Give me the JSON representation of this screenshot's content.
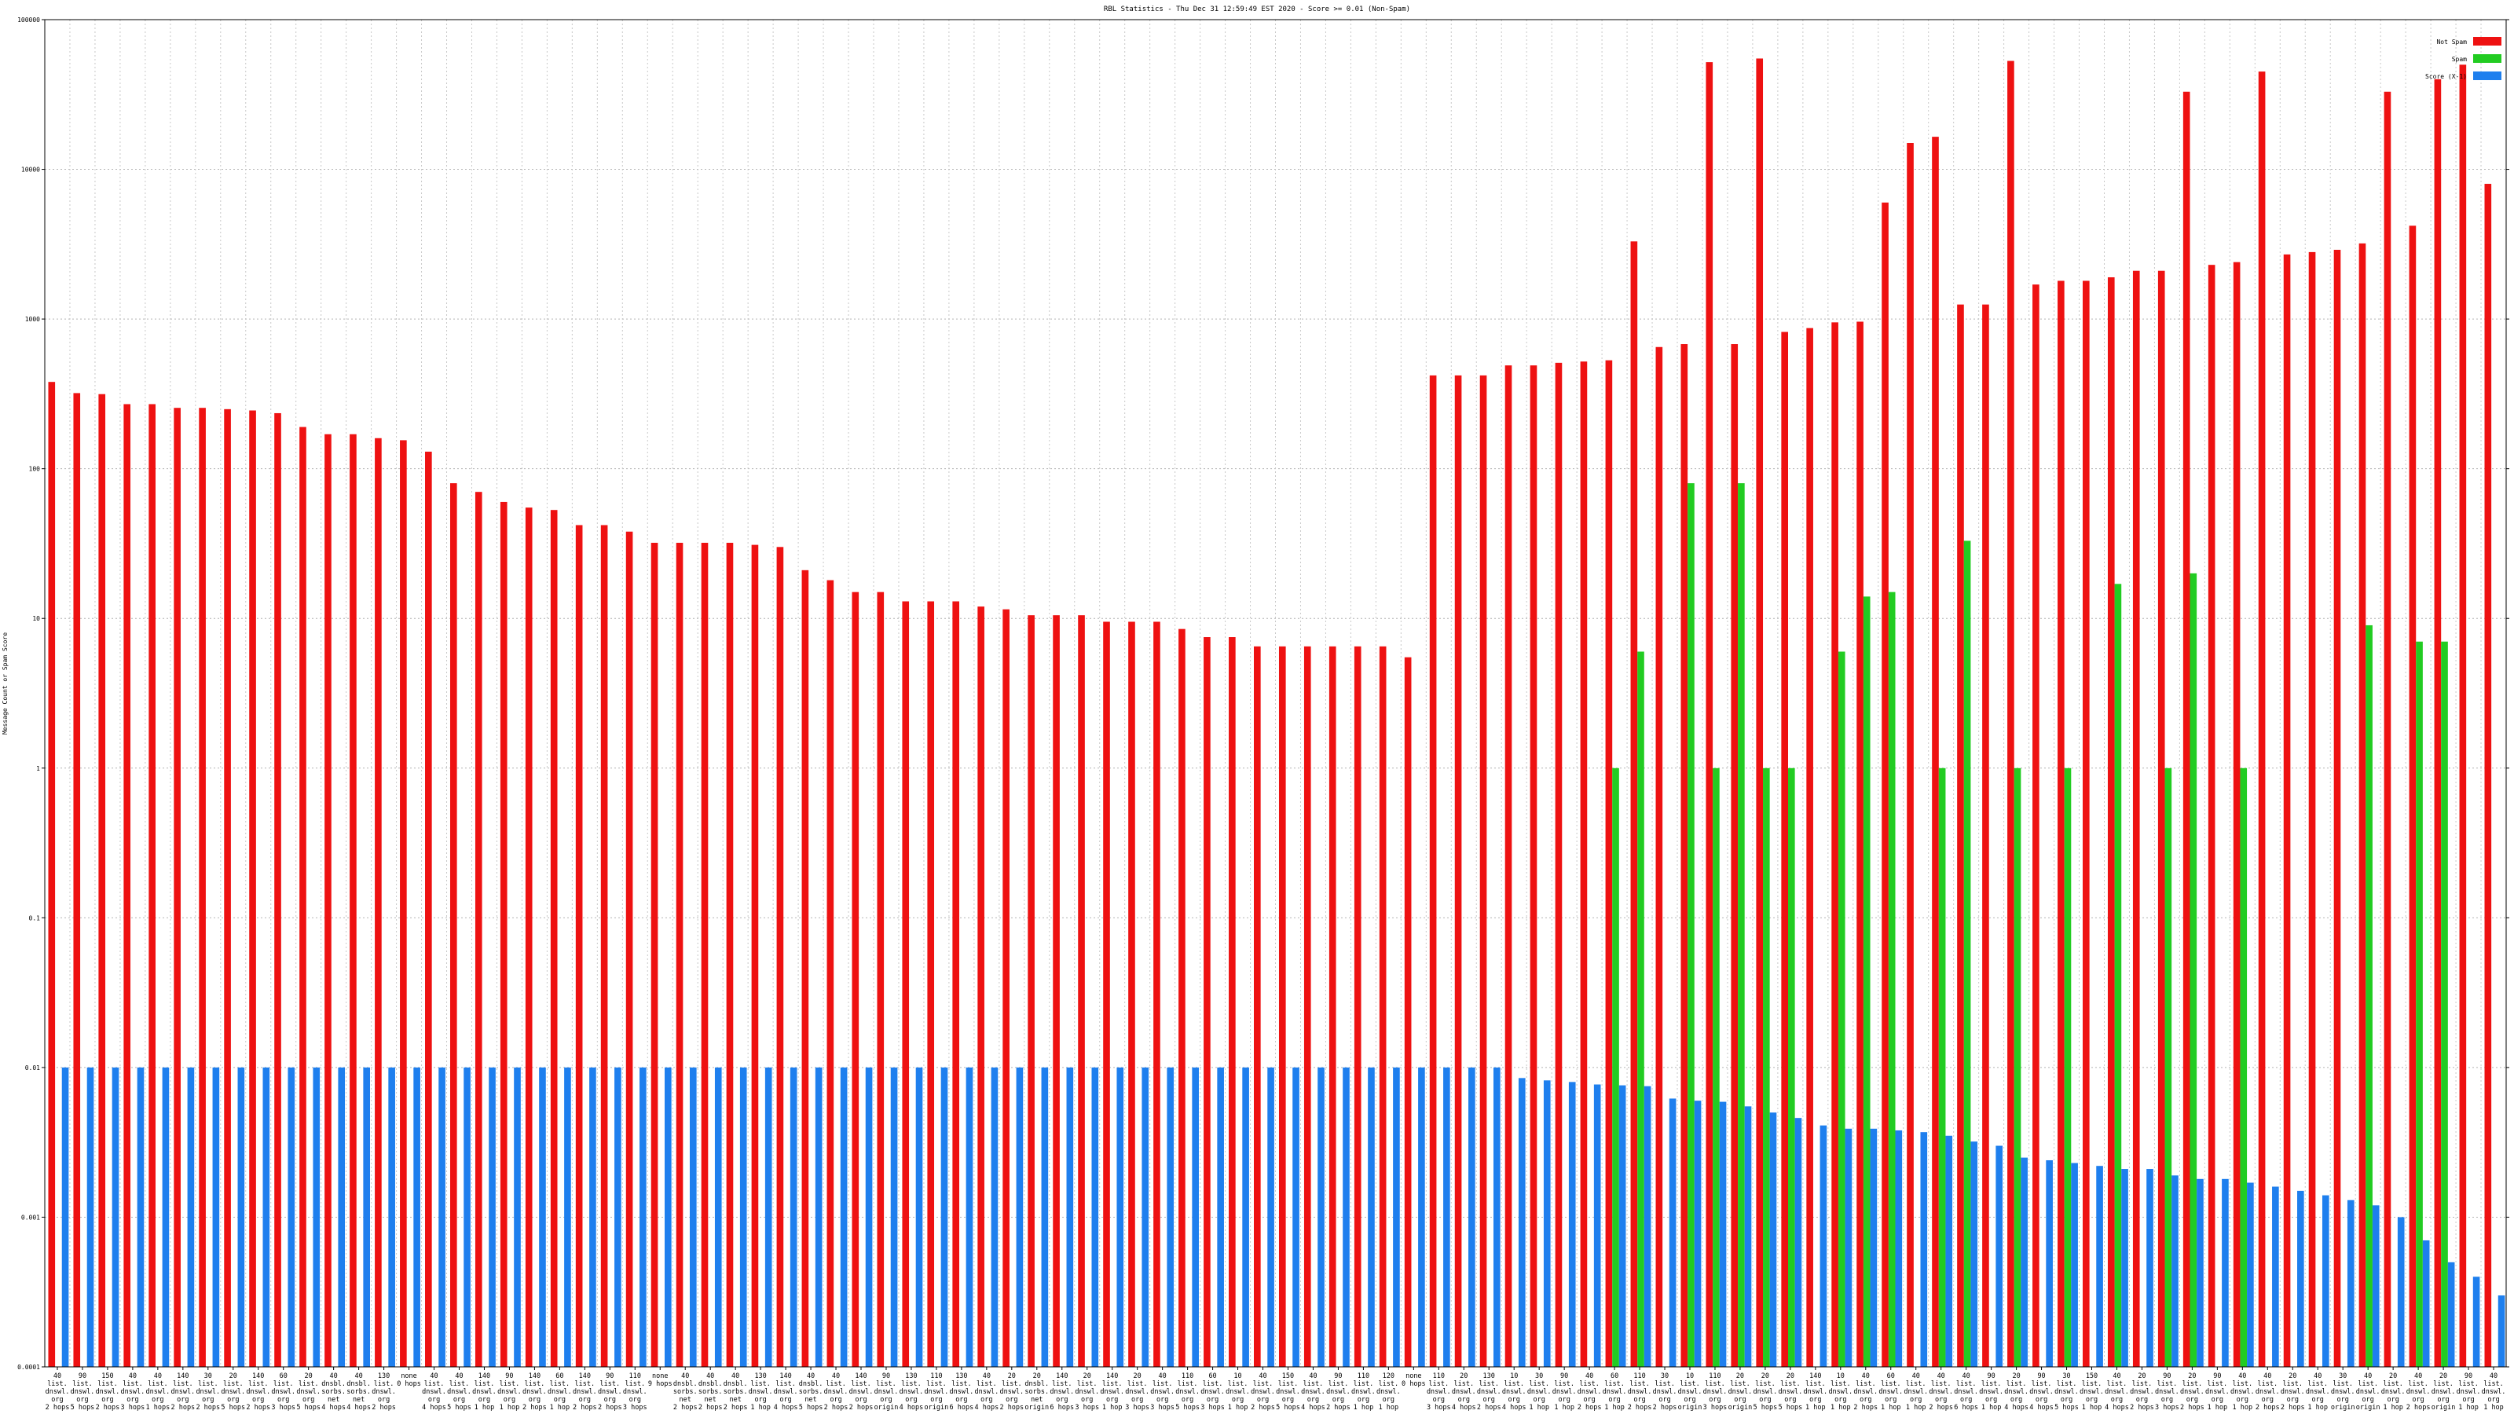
{
  "chart_data": {
    "type": "bar",
    "title": "RBL Statistics - Thu Dec 31 12:59:49 EST 2020 - Score >= 0.01 (Non-Spam)",
    "ylabel": "Message Count or Spam Score",
    "xlabel": "",
    "yscale": "log",
    "ylim": [
      0.0001,
      100000
    ],
    "yticks": [
      "0.0001",
      "0.001",
      "0.01",
      "0.1",
      "1",
      "10",
      "100",
      "1000",
      "10000",
      "100000"
    ],
    "grid": true,
    "legend_position": "top-right",
    "series": [
      {
        "name": "Not Spam",
        "color": "#ee1111",
        "values": [
          380,
          320,
          315,
          270,
          270,
          255,
          255,
          250,
          245,
          235,
          190,
          170,
          170,
          160,
          155,
          130,
          80,
          70,
          60,
          55,
          53,
          42,
          42,
          38,
          32,
          32,
          32,
          32,
          31,
          30,
          21,
          18,
          15,
          15,
          13,
          13,
          13,
          12,
          11.5,
          10.5,
          10.5,
          10.5,
          9.5,
          9.5,
          9.5,
          8.5,
          7.5,
          7.5,
          6.5,
          6.5,
          6.5,
          6.5,
          6.5,
          6.5,
          5.5,
          420,
          420,
          420,
          490,
          490,
          510,
          520,
          530,
          3300,
          650,
          680,
          52000,
          680,
          55000,
          820,
          870,
          950,
          960,
          6000,
          15000,
          16500,
          1250,
          1250,
          53000,
          1700,
          1800,
          1800,
          1900,
          2100,
          2100,
          33000,
          2300,
          2400,
          45000,
          2700,
          2800,
          2900,
          3200,
          33000,
          4200,
          40000,
          50000,
          8000
        ]
      },
      {
        "name": "Spam",
        "color": "#22cc22",
        "values": [
          null,
          null,
          null,
          null,
          null,
          null,
          null,
          null,
          null,
          null,
          null,
          null,
          null,
          null,
          null,
          null,
          null,
          null,
          null,
          null,
          null,
          null,
          null,
          null,
          null,
          null,
          null,
          null,
          null,
          null,
          null,
          null,
          null,
          null,
          null,
          null,
          null,
          null,
          null,
          null,
          null,
          null,
          null,
          null,
          null,
          null,
          null,
          null,
          null,
          null,
          null,
          null,
          null,
          null,
          null,
          null,
          null,
          null,
          null,
          null,
          null,
          null,
          1,
          6,
          null,
          80,
          1,
          80,
          1,
          1,
          null,
          6,
          14,
          15,
          null,
          1,
          33,
          null,
          1,
          null,
          1,
          null,
          17,
          null,
          1,
          20,
          null,
          1,
          null,
          null,
          null,
          null,
          9,
          null,
          7,
          7,
          null,
          null
        ]
      },
      {
        "name": "Score (X-1)",
        "color": "#1e7fee",
        "values": [
          0.01,
          0.01,
          0.01,
          0.01,
          0.01,
          0.01,
          0.01,
          0.01,
          0.01,
          0.01,
          0.01,
          0.01,
          0.01,
          0.01,
          0.01,
          0.01,
          0.01,
          0.01,
          0.01,
          0.01,
          0.01,
          0.01,
          0.01,
          0.01,
          0.01,
          0.01,
          0.01,
          0.01,
          0.01,
          0.01,
          0.01,
          0.01,
          0.01,
          0.01,
          0.01,
          0.01,
          0.01,
          0.01,
          0.01,
          0.01,
          0.01,
          0.01,
          0.01,
          0.01,
          0.01,
          0.01,
          0.01,
          0.01,
          0.01,
          0.01,
          0.01,
          0.01,
          0.01,
          0.01,
          0.01,
          0.01,
          0.01,
          0.01,
          0.0085,
          0.0082,
          0.008,
          0.0077,
          0.0076,
          0.0075,
          0.0062,
          0.006,
          0.0059,
          0.0055,
          0.005,
          0.0046,
          0.0041,
          0.0039,
          0.0039,
          0.0038,
          0.0037,
          0.0035,
          0.0032,
          0.003,
          0.0025,
          0.0024,
          0.0023,
          0.0022,
          0.0021,
          0.0021,
          0.0019,
          0.0018,
          0.0018,
          0.0017,
          0.0016,
          0.0015,
          0.0014,
          0.0013,
          0.0012,
          0.001,
          0.0007,
          0.0005,
          0.0004,
          0.0003
        ]
      }
    ],
    "categories": [
      [
        "40",
        "list.",
        "dnswl.",
        "org",
        "2 hops"
      ],
      [
        "90",
        "list.",
        "dnswl.",
        "org",
        "5 hops"
      ],
      [
        "150",
        "list.",
        "dnswl.",
        "org",
        "2 hops"
      ],
      [
        "40",
        "list.",
        "dnswl.",
        "org",
        "3 hops"
      ],
      [
        "40",
        "list.",
        "dnswl.",
        "org",
        "1 hops"
      ],
      [
        "140",
        "list.",
        "dnswl.",
        "org",
        "2 hops"
      ],
      [
        "30",
        "list.",
        "dnswl.",
        "org",
        "2 hops"
      ],
      [
        "20",
        "list.",
        "dnswl.",
        "org",
        "5 hops"
      ],
      [
        "140",
        "list.",
        "dnswl.",
        "org",
        "2 hops"
      ],
      [
        "60",
        "list.",
        "dnswl.",
        "org",
        "3 hops"
      ],
      [
        "20",
        "list.",
        "dnswl.",
        "org",
        "5 hops"
      ],
      [
        "40",
        "dnsbl.",
        "sorbs.",
        "net",
        "4 hops"
      ],
      [
        "40",
        "dnsbl.",
        "sorbs.",
        "net",
        "4 hops"
      ],
      [
        "130",
        "list.",
        "dnswl.",
        "org",
        "2 hops"
      ],
      [
        "none",
        "0 hops",
        ""
      ],
      [
        "40",
        "list.",
        "dnswl.",
        "org",
        "4 hops"
      ],
      [
        "40",
        "list.",
        "dnswl.",
        "org",
        "5 hops"
      ],
      [
        "140",
        "list.",
        "dnswl.",
        "org",
        "1 hop"
      ],
      [
        "90",
        "list.",
        "dnswl.",
        "org",
        "1 hop"
      ],
      [
        "140",
        "list.",
        "dnswl.",
        "org",
        "2 hops"
      ],
      [
        "60",
        "list.",
        "dnswl.",
        "org",
        "1 hop"
      ],
      [
        "140",
        "list.",
        "dnswl.",
        "org",
        "2 hops"
      ],
      [
        "90",
        "list.",
        "dnswl.",
        "org",
        "2 hops"
      ],
      [
        "110",
        "list.",
        "dnswl.",
        "org",
        "3 hops"
      ],
      [
        "none",
        "9 hops",
        ""
      ],
      [
        "40",
        "dnsbl.",
        "sorbs.",
        "net",
        "2 hops"
      ],
      [
        "40",
        "dnsbl.",
        "sorbs.",
        "net",
        "2 hops"
      ],
      [
        "40",
        "dnsbl.",
        "sorbs.",
        "net",
        "2 hops"
      ],
      [
        "130",
        "list.",
        "dnswl.",
        "org",
        "1 hop"
      ],
      [
        "140",
        "list.",
        "dnswl.",
        "org",
        "4 hops"
      ],
      [
        "40",
        "dnsbl.",
        "sorbs.",
        "net",
        "5 hops"
      ],
      [
        "40",
        "list.",
        "dnswl.",
        "org",
        "2 hops"
      ],
      [
        "140",
        "list.",
        "dnswl.",
        "org",
        "2 hops"
      ],
      [
        "90",
        "list.",
        "dnswl.",
        "org",
        "origin"
      ],
      [
        "130",
        "list.",
        "dnswl.",
        "org",
        "4 hops"
      ],
      [
        "110",
        "list.",
        "dnswl.",
        "org",
        "origin"
      ],
      [
        "130",
        "list.",
        "dnswl.",
        "org",
        "6 hops"
      ],
      [
        "40",
        "list.",
        "dnswl.",
        "org",
        "4 hops"
      ],
      [
        "20",
        "list.",
        "dnswl.",
        "org",
        "2 hops"
      ],
      [
        "20",
        "dnsbl.",
        "sorbs.",
        "net",
        "origin"
      ],
      [
        "140",
        "list.",
        "dnswl.",
        "org",
        "6 hops"
      ],
      [
        "20",
        "list.",
        "dnswl.",
        "org",
        "3 hops"
      ],
      [
        "140",
        "list.",
        "dnswl.",
        "org",
        "1 hop"
      ],
      [
        "20",
        "list.",
        "dnswl.",
        "org",
        "3 hops"
      ],
      [
        "40",
        "list.",
        "dnswl.",
        "org",
        "3 hops"
      ],
      [
        "110",
        "list.",
        "dnswl.",
        "org",
        "5 hops"
      ],
      [
        "60",
        "list.",
        "dnswl.",
        "org",
        "3 hops"
      ],
      [
        "10",
        "list.",
        "dnswl.",
        "org",
        "1 hop"
      ],
      [
        "40",
        "list.",
        "dnswl.",
        "org",
        "2 hops"
      ],
      [
        "150",
        "list.",
        "dnswl.",
        "org",
        "5 hops"
      ],
      [
        "40",
        "list.",
        "dnswl.",
        "org",
        "4 hops"
      ],
      [
        "90",
        "list.",
        "dnswl.",
        "org",
        "2 hops"
      ],
      [
        "110",
        "list.",
        "dnswl.",
        "org",
        "1 hop"
      ],
      [
        "120",
        "list.",
        "dnswl.",
        "org",
        "1 hop"
      ],
      [
        "none",
        "0 hops",
        ""
      ],
      [
        "110",
        "list.",
        "dnswl.",
        "org",
        "3 hops"
      ],
      [
        "20",
        "list.",
        "dnswl.",
        "org",
        "4 hops"
      ],
      [
        "130",
        "list.",
        "dnswl.",
        "org",
        "2 hops"
      ],
      [
        "10",
        "list.",
        "dnswl.",
        "org",
        "4 hops"
      ],
      [
        "30",
        "list.",
        "dnswl.",
        "org",
        "1 hop"
      ],
      [
        "90",
        "list.",
        "dnswl.",
        "org",
        "1 hop"
      ],
      [
        "40",
        "list.",
        "dnswl.",
        "org",
        "2 hops"
      ],
      [
        "60",
        "list.",
        "dnswl.",
        "org",
        "1 hop"
      ],
      [
        "110",
        "list.",
        "dnswl.",
        "org",
        "2 hops"
      ],
      [
        "30",
        "list.",
        "dnswl.",
        "org",
        "2 hops"
      ],
      [
        "10",
        "list.",
        "dnswl.",
        "org",
        "origin"
      ],
      [
        "110",
        "list.",
        "dnswl.",
        "org",
        "3 hops"
      ],
      [
        "20",
        "list.",
        "dnswl.",
        "org",
        "origin"
      ],
      [
        "20",
        "list.",
        "dnswl.",
        "org",
        "5 hops"
      ],
      [
        "20",
        "list.",
        "dnswl.",
        "org",
        "5 hops"
      ],
      [
        "140",
        "list.",
        "dnswl.",
        "org",
        "1 hop"
      ],
      [
        "10",
        "list.",
        "dnswl.",
        "org",
        "1 hop"
      ],
      [
        "40",
        "list.",
        "dnswl.",
        "org",
        "2 hops"
      ],
      [
        "60",
        "list.",
        "dnswl.",
        "org",
        "1 hop"
      ],
      [
        "40",
        "list.",
        "dnswl.",
        "org",
        "1 hop"
      ],
      [
        "40",
        "list.",
        "dnswl.",
        "org",
        "2 hops"
      ],
      [
        "40",
        "list.",
        "dnswl.",
        "org",
        "6 hops"
      ],
      [
        "90",
        "list.",
        "dnswl.",
        "org",
        "1 hop"
      ],
      [
        "20",
        "list.",
        "dnswl.",
        "org",
        "4 hops"
      ],
      [
        "90",
        "list.",
        "dnswl.",
        "org",
        "4 hops"
      ],
      [
        "30",
        "list.",
        "dnswl.",
        "org",
        "5 hops"
      ],
      [
        "150",
        "list.",
        "dnswl.",
        "org",
        "1 hop"
      ],
      [
        "40",
        "list.",
        "dnswl.",
        "org",
        "4 hops"
      ],
      [
        "20",
        "list.",
        "dnswl.",
        "org",
        "2 hops"
      ],
      [
        "90",
        "list.",
        "dnswl.",
        "org",
        "3 hops"
      ],
      [
        "20",
        "list.",
        "dnswl.",
        "org",
        "2 hops"
      ],
      [
        "90",
        "list.",
        "dnswl.",
        "org",
        "1 hop"
      ],
      [
        "40",
        "list.",
        "dnswl.",
        "org",
        "1 hop"
      ],
      [
        "40",
        "list.",
        "dnswl.",
        "org",
        "2 hops"
      ],
      [
        "20",
        "list.",
        "dnswl.",
        "org",
        "2 hops"
      ],
      [
        "40",
        "list.",
        "dnswl.",
        "org",
        "1 hop"
      ],
      [
        "30",
        "list.",
        "dnswl.",
        "org",
        "origin"
      ],
      [
        "40",
        "list.",
        "dnswl.",
        "org",
        "origin"
      ],
      [
        "20",
        "list.",
        "dnswl.",
        "org",
        "1 hop"
      ],
      [
        "40",
        "list.",
        "dnswl.",
        "org",
        "2 hops"
      ],
      [
        "20",
        "list.",
        "dnswl.",
        "org",
        "origin"
      ],
      [
        "90",
        "list.",
        "dnswl.",
        "org",
        "1 hop"
      ],
      [
        "40",
        "list.",
        "dnswl.",
        "org",
        "1 hop"
      ]
    ]
  }
}
